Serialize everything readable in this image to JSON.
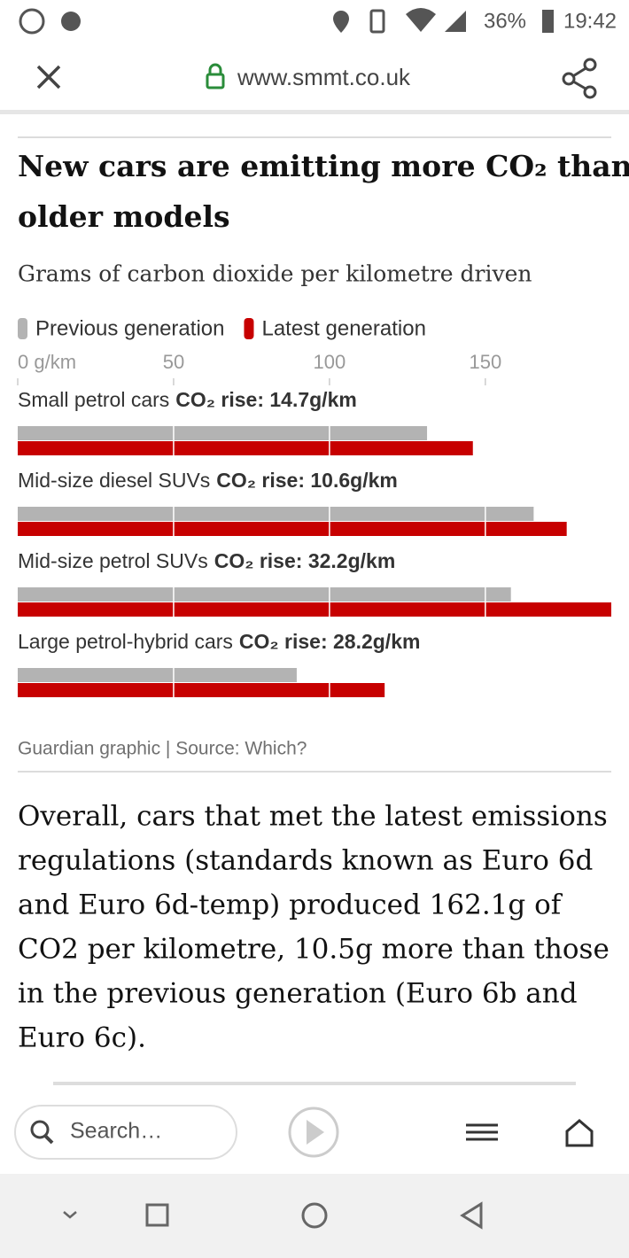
{
  "status_bar": {
    "battery": "36%",
    "time": "19:42"
  },
  "browser": {
    "url": "www.smmt.co.uk"
  },
  "chart_data": {
    "type": "bar",
    "orientation": "horizontal",
    "title": "New cars are emitting more CO₂ than older models",
    "subtitle": "Grams of carbon dioxide per kilometre driven",
    "categories": [
      "Small petrol cars",
      "Mid-size diesel SUVs",
      "Mid-size petrol SUVs",
      "Large petrol-hybrid cars"
    ],
    "annotations": [
      "CO₂ rise: 14.7g/km",
      "CO₂ rise: 10.6g/km",
      "CO₂ rise: 32.2g/km",
      "CO₂ rise: 28.2g/km"
    ],
    "series": [
      {
        "name": "Previous generation",
        "color": "#b3b3b3",
        "values": [
          131.3,
          165.5,
          158.2,
          89.5
        ]
      },
      {
        "name": "Latest generation",
        "color": "#c70000",
        "values": [
          146.0,
          176.1,
          190.4,
          117.7
        ]
      }
    ],
    "xlim": [
      0,
      190.4
    ],
    "xticks": [
      {
        "value": 0,
        "label": "0 g/km"
      },
      50,
      100,
      150
    ],
    "grid": true,
    "source": "Guardian graphic | Source: Which?"
  },
  "article": {
    "lines": [
      "Overall, cars that met the latest emissions",
      "regulations (standards known as Euro 6d",
      "and Euro 6d-temp) produced 162.1g of",
      "CO2 per kilometre, 10.5g more than those",
      "in the previous generation (Euro 6b and",
      "Euro 6c)."
    ]
  },
  "toolbar": {
    "search": "Search…"
  }
}
